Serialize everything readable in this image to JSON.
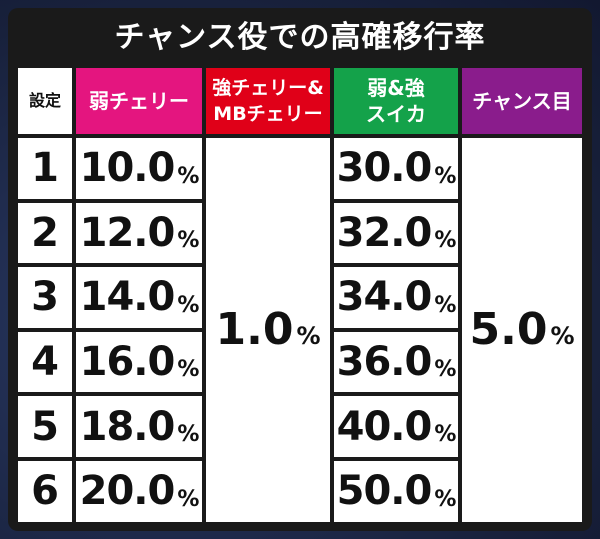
{
  "title": "チャンス役での高確移行率",
  "headers": {
    "setting": "設定",
    "weak_cherry": "弱チェリー",
    "strong_cherry": "強チェリー&\nMBチェリー",
    "watermelon": "弱&強\nスイカ",
    "chance_eye": "チャンス目"
  },
  "percent_sign": "%",
  "rows": [
    {
      "setting": "1",
      "weak_cherry": "10.0",
      "watermelon": "30.0"
    },
    {
      "setting": "2",
      "weak_cherry": "12.0",
      "watermelon": "32.0"
    },
    {
      "setting": "3",
      "weak_cherry": "14.0",
      "watermelon": "34.0"
    },
    {
      "setting": "4",
      "weak_cherry": "16.0",
      "watermelon": "36.0"
    },
    {
      "setting": "5",
      "weak_cherry": "18.0",
      "watermelon": "40.0"
    },
    {
      "setting": "6",
      "weak_cherry": "20.0",
      "watermelon": "50.0"
    }
  ],
  "strong_cherry_all": "1.0",
  "chance_eye_all": "5.0",
  "colors": {
    "weak_cherry": "#e4157f",
    "strong_cherry": "#e00018",
    "watermelon": "#14a24a",
    "chance_eye": "#8a1c8c"
  }
}
